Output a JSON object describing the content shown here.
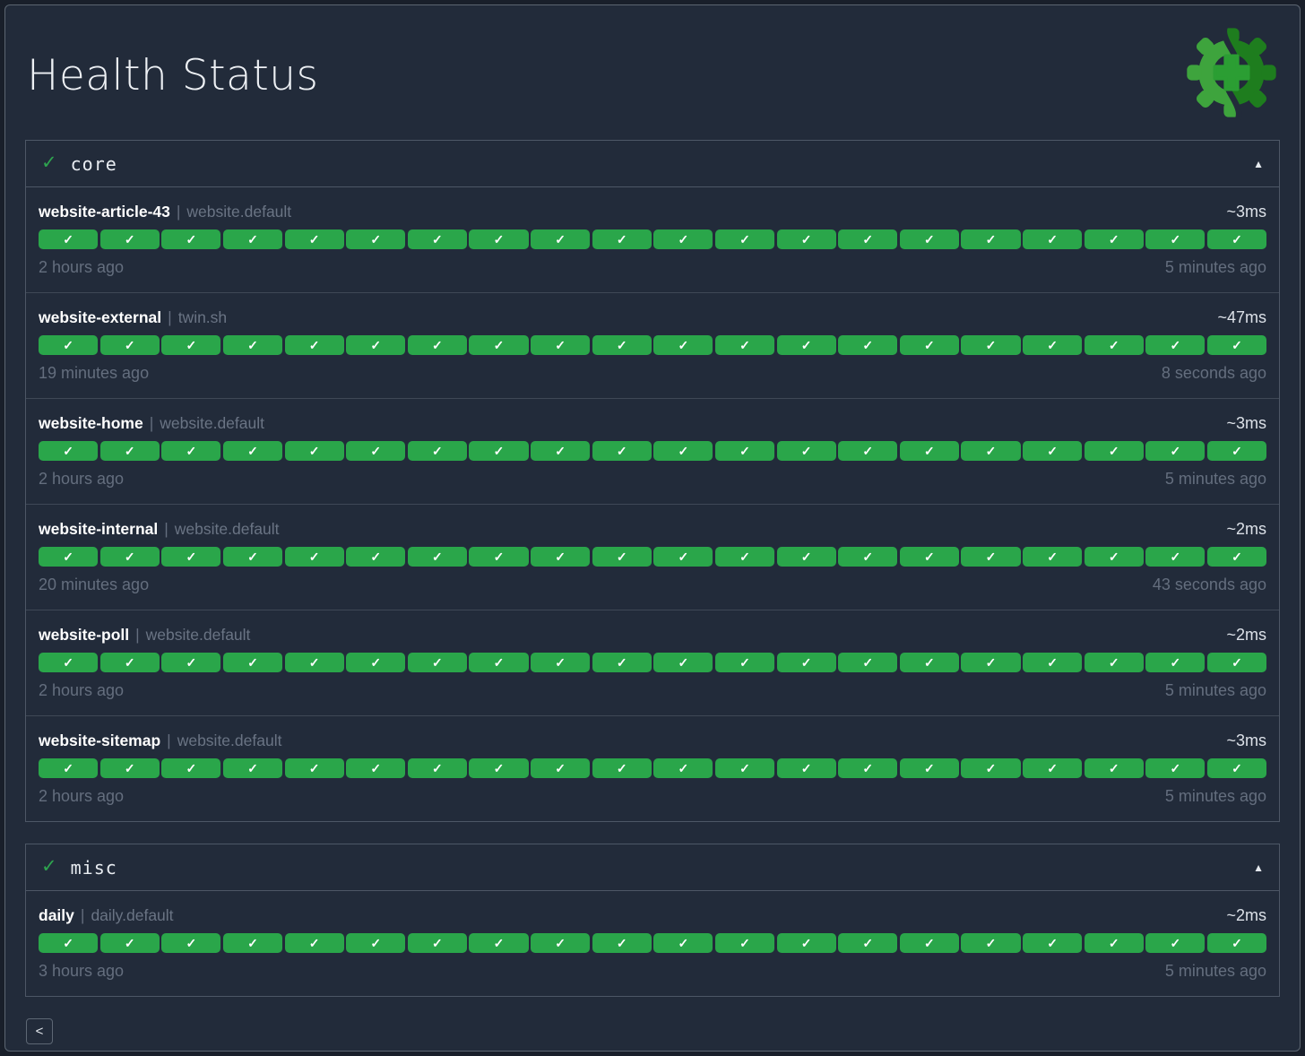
{
  "page": {
    "title": "Health Status",
    "back_button": "<"
  },
  "labels": {
    "separator": "|"
  },
  "icons": {
    "check": "✓",
    "section_check": "✓",
    "collapse_arrow": "▲",
    "logo": "healthchecks-gear-plus-logo"
  },
  "colors": {
    "background": "#222b3a",
    "pill_green": "#2aa64a",
    "section_check_green": "#2ea44f",
    "logo_light_green": "#3ea43d",
    "logo_dark_green": "#1e7d1e",
    "logo_plus_green": "#2b9e33"
  },
  "sections": [
    {
      "name": "core",
      "status": "healthy",
      "rows": [
        {
          "name": "website-article-43",
          "group": "website.default",
          "latency": "~3ms",
          "oldest": "2 hours ago",
          "newest": "5 minutes ago",
          "history": {
            "checks": 20,
            "status": "up"
          }
        },
        {
          "name": "website-external",
          "group": "twin.sh",
          "latency": "~47ms",
          "oldest": "19 minutes ago",
          "newest": "8 seconds ago",
          "history": {
            "checks": 20,
            "status": "up"
          }
        },
        {
          "name": "website-home",
          "group": "website.default",
          "latency": "~3ms",
          "oldest": "2 hours ago",
          "newest": "5 minutes ago",
          "history": {
            "checks": 20,
            "status": "up"
          }
        },
        {
          "name": "website-internal",
          "group": "website.default",
          "latency": "~2ms",
          "oldest": "20 minutes ago",
          "newest": "43 seconds ago",
          "history": {
            "checks": 20,
            "status": "up"
          }
        },
        {
          "name": "website-poll",
          "group": "website.default",
          "latency": "~2ms",
          "oldest": "2 hours ago",
          "newest": "5 minutes ago",
          "history": {
            "checks": 20,
            "status": "up"
          }
        },
        {
          "name": "website-sitemap",
          "group": "website.default",
          "latency": "~3ms",
          "oldest": "2 hours ago",
          "newest": "5 minutes ago",
          "history": {
            "checks": 20,
            "status": "up"
          }
        }
      ]
    },
    {
      "name": "misc",
      "status": "healthy",
      "rows": [
        {
          "name": "daily",
          "group": "daily.default",
          "latency": "~2ms",
          "oldest": "3 hours ago",
          "newest": "5 minutes ago",
          "history": {
            "checks": 20,
            "status": "up"
          }
        }
      ]
    }
  ]
}
